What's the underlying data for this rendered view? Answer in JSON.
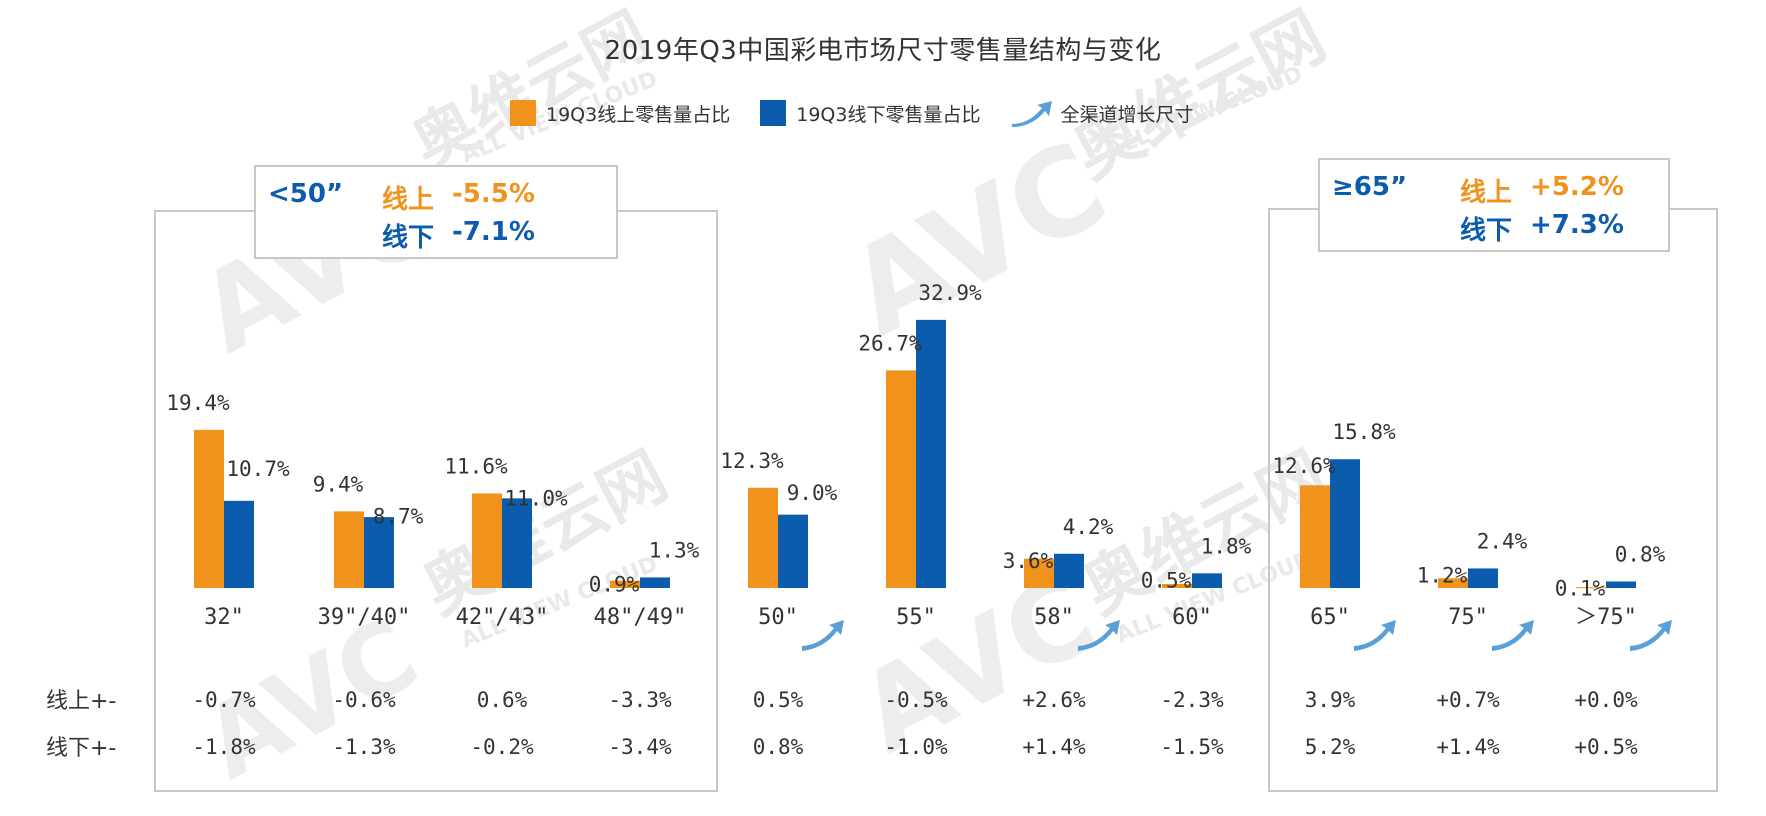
{
  "watermark": {
    "logo": "AVC",
    "cn": "奥维云网",
    "en": "ALL VIEW CLOUD"
  },
  "colors": {
    "online": "#F0921C",
    "offline": "#0B5CAD",
    "arrow": "#5AA0D8",
    "frame": "#C8C8C8"
  },
  "chart_data": {
    "type": "bar",
    "title": "2019年Q3中国彩电市场尺寸零售量结构与变化",
    "categories": [
      "32\"",
      "39\"/40\"",
      "42\"/43\"",
      "48\"/49\"",
      "50\"",
      "55\"",
      "58\"",
      "60\"",
      "65\"",
      "75\"",
      "＞75\""
    ],
    "series": [
      {
        "name": "19Q3线上零售量占比",
        "values": [
          19.4,
          9.4,
          11.6,
          0.9,
          12.3,
          26.7,
          3.6,
          0.5,
          12.6,
          1.2,
          0.1
        ],
        "labels": [
          "19.4%",
          "9.4%",
          "11.6%",
          "0.9%",
          "12.3%",
          "26.7%",
          "3.6%",
          "0.5%",
          "12.6%",
          "1.2%",
          "0.1%"
        ]
      },
      {
        "name": "19Q3线下零售量占比",
        "values": [
          10.7,
          8.7,
          11.0,
          1.3,
          9.0,
          32.9,
          4.2,
          1.8,
          15.8,
          2.4,
          0.8
        ],
        "labels": [
          "10.7%",
          "8.7%",
          "11.0%",
          "1.3%",
          "9.0%",
          "32.9%",
          "4.2%",
          "1.8%",
          "15.8%",
          "2.4%",
          "0.8%"
        ]
      }
    ],
    "legend_arrow_label": "全渠道增长尺寸",
    "growth_sizes": [
      false,
      false,
      false,
      false,
      true,
      false,
      true,
      false,
      true,
      true,
      true
    ],
    "ylim": [
      0,
      40
    ],
    "change_table": {
      "row_labels": [
        "线上+-",
        "线下+-"
      ],
      "rows": [
        [
          "-0.7%",
          "-0.6%",
          "0.6%",
          "-3.3%",
          "0.5%",
          "-0.5%",
          "+2.6%",
          "-2.3%",
          "3.9%",
          "+0.7%",
          "+0.0%"
        ],
        [
          "-1.8%",
          "-1.3%",
          "-0.2%",
          "-3.4%",
          "0.8%",
          "-1.0%",
          "+1.4%",
          "-1.5%",
          "5.2%",
          "+1.4%",
          "+0.5%"
        ]
      ]
    },
    "callouts": [
      {
        "size": "<50”",
        "online_label": "线上",
        "online_value": "-5.5%",
        "offline_label": "线下",
        "offline_value": "-7.1%"
      },
      {
        "size": "≥65”",
        "online_label": "线上",
        "online_value": "+5.2%",
        "offline_label": "线下",
        "offline_value": "+7.3%"
      }
    ]
  }
}
